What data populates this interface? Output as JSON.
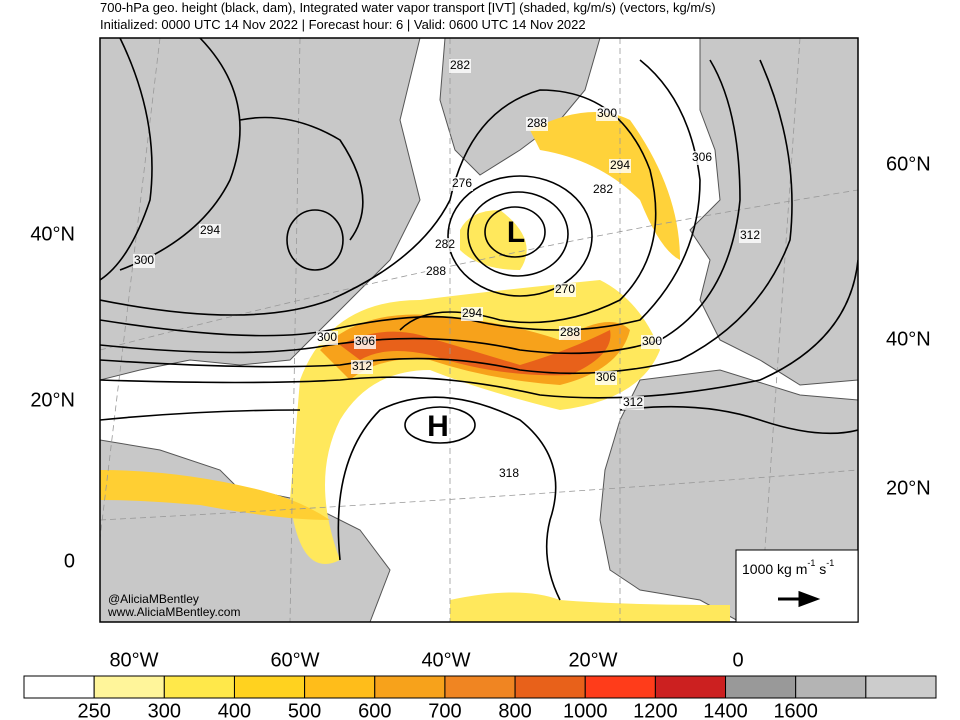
{
  "header": {
    "title": "700-hPa geo. height (black, dam), Integrated water vapor transport [IVT] (shaded, kg/m/s) (vectors, kg/m/s)",
    "subtitle": "Initialized: 0000 UTC 14 Nov 2022 | Forecast hour: 6 | Valid: 0600 UTC 14 Nov 2022"
  },
  "axes": {
    "left": [
      "40°N",
      "20°N",
      "0"
    ],
    "right": [
      "60°N",
      "40°N",
      "20°N"
    ],
    "bottom": [
      "80°W",
      "60°W",
      "40°W",
      "20°W",
      "0"
    ]
  },
  "contour_labels": [
    "282",
    "288",
    "300",
    "294",
    "306",
    "282",
    "276",
    "294",
    "300",
    "282",
    "288",
    "312",
    "270",
    "294",
    "288",
    "300",
    "300",
    "306",
    "312",
    "306",
    "312",
    "318"
  ],
  "centers": {
    "low": "L",
    "high": "H"
  },
  "credit": [
    "@AliciaMBentley",
    "www.AliciaMBentley.com"
  ],
  "vector_legend": {
    "text": "1000 kg m",
    "exp1": "-1",
    "unit2": " s",
    "exp2": "-1"
  },
  "colorbar": {
    "ticks": [
      250,
      300,
      400,
      500,
      600,
      700,
      800,
      1000,
      1200,
      1400,
      1600
    ],
    "colors": [
      "#ffffff",
      "#fff59a",
      "#ffe84a",
      "#ffd21f",
      "#ffbd1a",
      "#f7a21b",
      "#f08522",
      "#e8611a",
      "#ff3c1a",
      "#cc2020",
      "#999999",
      "#b4b4b4",
      "#cccccc"
    ]
  }
}
